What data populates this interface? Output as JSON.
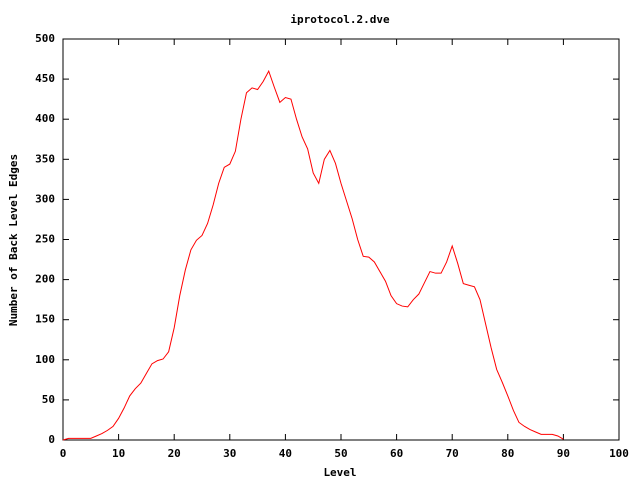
{
  "chart_data": {
    "type": "line",
    "title": "iprotocol.2.dve",
    "x_label": "Level",
    "y_label": "Number of Back Level Edges",
    "x": [
      0,
      1,
      2,
      3,
      4,
      5,
      6,
      7,
      8,
      9,
      10,
      11,
      12,
      13,
      14,
      15,
      16,
      17,
      18,
      19,
      20,
      21,
      22,
      23,
      24,
      25,
      26,
      27,
      28,
      29,
      30,
      31,
      32,
      33,
      34,
      35,
      36,
      37,
      38,
      39,
      40,
      41,
      42,
      43,
      44,
      45,
      46,
      47,
      48,
      49,
      50,
      51,
      52,
      53,
      54,
      55,
      56,
      57,
      58,
      59,
      60,
      61,
      62,
      63,
      64,
      65,
      66,
      67,
      68,
      69,
      70,
      71,
      72,
      73,
      74,
      75,
      76,
      77,
      78,
      79,
      80,
      81,
      82,
      83,
      84,
      85,
      86,
      87,
      88,
      89,
      90
    ],
    "series": [
      {
        "color": "#ff0000",
        "values": [
          0,
          2,
          2,
          2,
          2,
          2,
          5,
          8,
          12,
          17,
          27,
          40,
          55,
          64,
          71,
          83,
          95,
          99,
          101,
          110,
          140,
          180,
          212,
          237,
          249,
          255,
          270,
          293,
          320,
          340,
          344,
          360,
          400,
          433,
          439,
          437,
          447,
          460,
          440,
          421,
          427,
          425,
          400,
          378,
          363,
          333,
          320,
          350,
          361,
          345,
          320,
          298,
          276,
          250,
          229,
          228,
          222,
          210,
          198,
          180,
          170,
          167,
          166,
          175,
          182,
          196,
          210,
          208,
          208,
          222,
          242,
          220,
          195,
          193,
          191,
          175,
          145,
          115,
          88,
          72,
          55,
          37,
          22,
          17,
          13,
          10,
          7,
          7,
          7,
          5,
          1
        ]
      }
    ],
    "xlim": [
      0,
      100
    ],
    "xticks": [
      0,
      10,
      20,
      30,
      40,
      50,
      60,
      70,
      80,
      90,
      100
    ],
    "ylim": [
      0,
      500
    ],
    "yticks": [
      0,
      50,
      100,
      150,
      200,
      250,
      300,
      350,
      400,
      450,
      500
    ]
  }
}
